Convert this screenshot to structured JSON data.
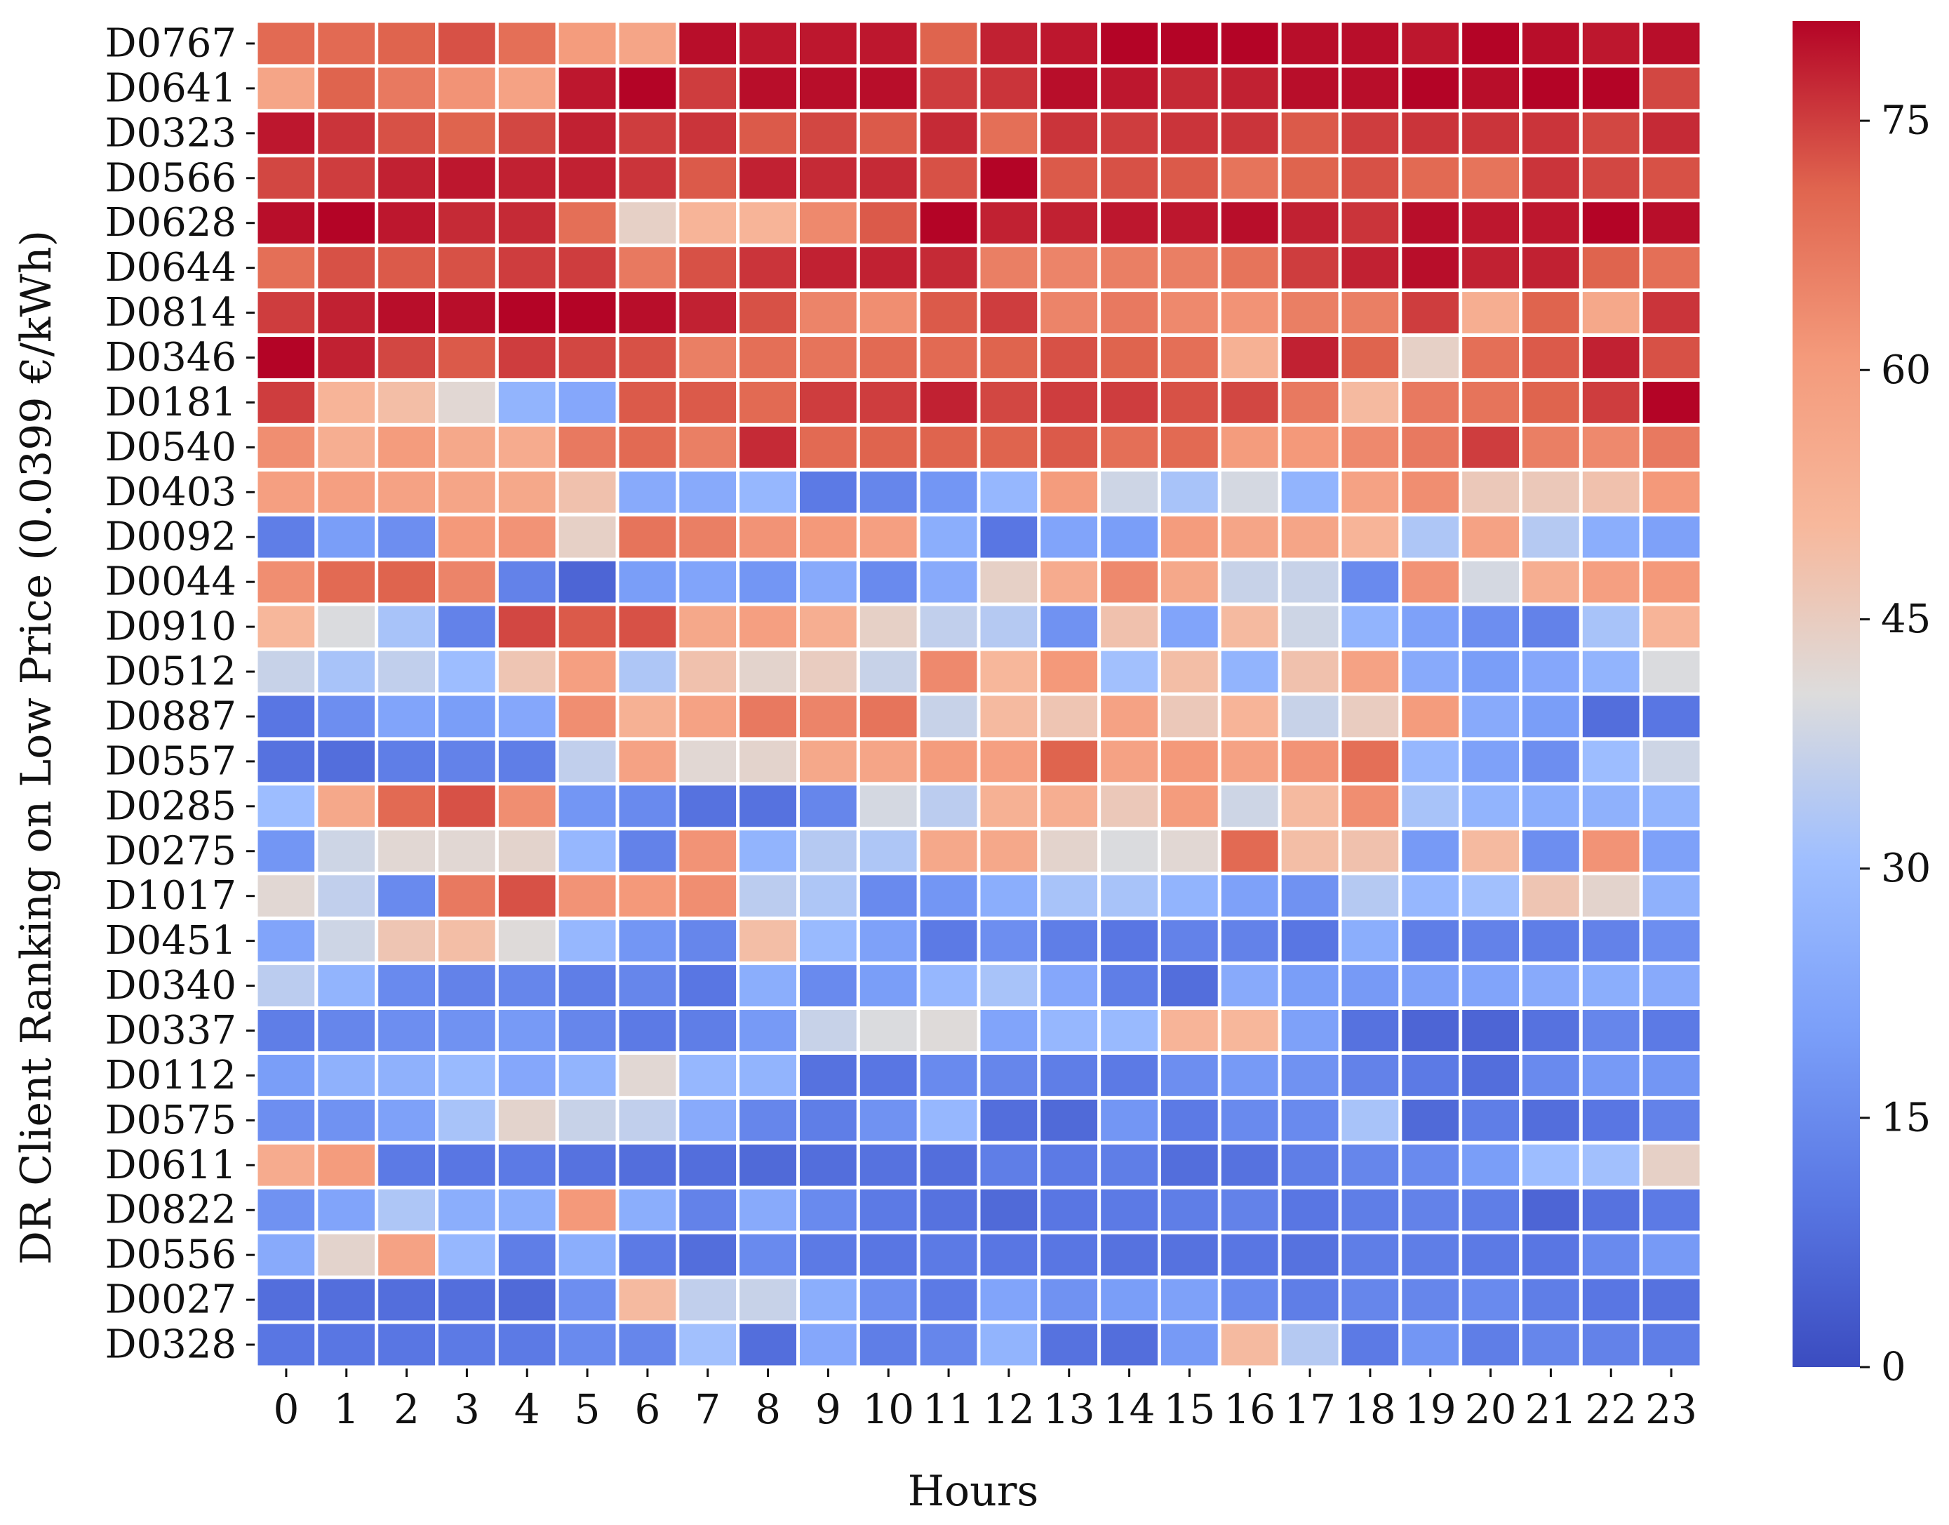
{
  "chart_data": {
    "type": "heatmap",
    "xlabel": "Hours",
    "ylabel": "DR Client Ranking on Low Price (0.0399 €/kWh)",
    "x_categories": [
      "0",
      "1",
      "2",
      "3",
      "4",
      "5",
      "6",
      "7",
      "8",
      "9",
      "10",
      "11",
      "12",
      "13",
      "14",
      "15",
      "16",
      "17",
      "18",
      "19",
      "20",
      "21",
      "22",
      "23"
    ],
    "y_categories": [
      "D0767",
      "D0641",
      "D0323",
      "D0566",
      "D0628",
      "D0644",
      "D0814",
      "D0346",
      "D0181",
      "D0540",
      "D0403",
      "D0092",
      "D0044",
      "D0910",
      "D0512",
      "D0887",
      "D0557",
      "D0285",
      "D0275",
      "D1017",
      "D0451",
      "D0340",
      "D0337",
      "D0112",
      "D0575",
      "D0611",
      "D0822",
      "D0556",
      "D0027",
      "D0328"
    ],
    "colorbar": {
      "min": 0,
      "max": 81,
      "ticks": [
        0,
        15,
        30,
        45,
        60,
        75
      ],
      "colormap": "coolwarm"
    },
    "values": [
      [
        70,
        70,
        71,
        73,
        69,
        60,
        57,
        80,
        79,
        79,
        79,
        71,
        78,
        79,
        81,
        81,
        81,
        80,
        80,
        79,
        81,
        80,
        79,
        80
      ],
      [
        57,
        71,
        67,
        62,
        58,
        79,
        81,
        75,
        80,
        80,
        80,
        75,
        76,
        80,
        79,
        77,
        78,
        80,
        80,
        81,
        80,
        81,
        81,
        74
      ],
      [
        79,
        76,
        73,
        71,
        74,
        78,
        75,
        76,
        72,
        74,
        72,
        77,
        69,
        76,
        75,
        76,
        76,
        72,
        75,
        76,
        76,
        76,
        74,
        77
      ],
      [
        74,
        75,
        78,
        79,
        78,
        78,
        76,
        72,
        78,
        77,
        77,
        73,
        81,
        72,
        73,
        72,
        68,
        71,
        73,
        70,
        68,
        76,
        74,
        73
      ],
      [
        80,
        81,
        79,
        77,
        77,
        69,
        44,
        52,
        52,
        64,
        72,
        81,
        78,
        78,
        79,
        79,
        80,
        78,
        76,
        80,
        79,
        79,
        81,
        80
      ],
      [
        69,
        73,
        72,
        73,
        75,
        75,
        67,
        73,
        76,
        78,
        78,
        77,
        66,
        65,
        66,
        66,
        68,
        75,
        78,
        80,
        78,
        78,
        71,
        69
      ],
      [
        75,
        78,
        80,
        80,
        81,
        81,
        80,
        78,
        73,
        65,
        63,
        72,
        75,
        65,
        67,
        64,
        62,
        66,
        66,
        75,
        54,
        71,
        56,
        76
      ],
      [
        81,
        78,
        74,
        72,
        75,
        74,
        73,
        66,
        69,
        68,
        70,
        70,
        71,
        73,
        71,
        69,
        53,
        78,
        71,
        44,
        69,
        72,
        78,
        73
      ],
      [
        75,
        52,
        49,
        42,
        27,
        23,
        72,
        72,
        70,
        75,
        75,
        78,
        74,
        75,
        75,
        73,
        74,
        67,
        50,
        67,
        68,
        71,
        75,
        81
      ],
      [
        63,
        54,
        60,
        56,
        55,
        67,
        70,
        66,
        77,
        70,
        71,
        71,
        71,
        72,
        69,
        70,
        60,
        61,
        64,
        67,
        75,
        66,
        64,
        67
      ],
      [
        59,
        59,
        58,
        57,
        56,
        48,
        24,
        24,
        28,
        11,
        14,
        18,
        28,
        60,
        38,
        32,
        39,
        27,
        58,
        63,
        46,
        46,
        48,
        61
      ],
      [
        12,
        20,
        16,
        61,
        62,
        44,
        68,
        66,
        62,
        61,
        59,
        25,
        10,
        22,
        20,
        60,
        57,
        57,
        52,
        33,
        58,
        34,
        25,
        21
      ],
      [
        63,
        70,
        71,
        65,
        13,
        6,
        20,
        22,
        18,
        24,
        15,
        24,
        44,
        55,
        64,
        56,
        37,
        37,
        15,
        62,
        39,
        54,
        59,
        61
      ],
      [
        51,
        40,
        32,
        13,
        74,
        72,
        73,
        56,
        59,
        54,
        44,
        36,
        34,
        17,
        48,
        22,
        50,
        38,
        27,
        21,
        16,
        13,
        32,
        52
      ],
      [
        37,
        32,
        36,
        30,
        47,
        59,
        33,
        48,
        43,
        45,
        37,
        64,
        51,
        61,
        31,
        49,
        27,
        48,
        58,
        24,
        20,
        23,
        27,
        40
      ],
      [
        10,
        16,
        22,
        20,
        23,
        63,
        53,
        58,
        67,
        65,
        68,
        37,
        50,
        47,
        58,
        46,
        52,
        37,
        45,
        60,
        24,
        20,
        8,
        10
      ],
      [
        9,
        8,
        12,
        13,
        12,
        36,
        58,
        42,
        43,
        56,
        57,
        60,
        59,
        71,
        58,
        61,
        58,
        62,
        69,
        28,
        21,
        16,
        30,
        38
      ],
      [
        30,
        56,
        70,
        73,
        63,
        18,
        15,
        9,
        9,
        14,
        39,
        35,
        53,
        54,
        46,
        60,
        38,
        50,
        63,
        32,
        27,
        25,
        26,
        27
      ],
      [
        18,
        38,
        42,
        42,
        43,
        28,
        13,
        62,
        27,
        34,
        33,
        56,
        56,
        43,
        40,
        42,
        70,
        49,
        48,
        19,
        50,
        16,
        62,
        21
      ],
      [
        42,
        36,
        15,
        67,
        73,
        62,
        61,
        63,
        35,
        33,
        15,
        18,
        25,
        32,
        32,
        27,
        21,
        17,
        34,
        28,
        31,
        47,
        43,
        26
      ],
      [
        22,
        38,
        47,
        49,
        41,
        28,
        18,
        14,
        49,
        29,
        21,
        11,
        16,
        12,
        10,
        13,
        13,
        10,
        25,
        12,
        13,
        12,
        13,
        16
      ],
      [
        35,
        27,
        15,
        13,
        14,
        12,
        14,
        10,
        25,
        15,
        20,
        28,
        32,
        23,
        12,
        8,
        24,
        20,
        19,
        21,
        22,
        24,
        25,
        24
      ],
      [
        12,
        14,
        16,
        17,
        19,
        14,
        11,
        12,
        19,
        37,
        40,
        41,
        22,
        28,
        29,
        52,
        51,
        21,
        9,
        6,
        6,
        9,
        14,
        11
      ],
      [
        20,
        26,
        26,
        29,
        23,
        27,
        42,
        28,
        27,
        9,
        10,
        15,
        14,
        12,
        11,
        16,
        19,
        17,
        13,
        11,
        8,
        15,
        19,
        18
      ],
      [
        16,
        17,
        21,
        32,
        43,
        37,
        36,
        24,
        14,
        12,
        17,
        28,
        8,
        7,
        18,
        11,
        15,
        15,
        32,
        7,
        12,
        8,
        10,
        13
      ],
      [
        55,
        60,
        11,
        10,
        11,
        9,
        8,
        8,
        7,
        8,
        9,
        8,
        12,
        11,
        12,
        8,
        9,
        12,
        14,
        15,
        20,
        30,
        31,
        44
      ],
      [
        17,
        22,
        33,
        25,
        25,
        61,
        25,
        13,
        24,
        15,
        11,
        9,
        7,
        10,
        11,
        12,
        13,
        10,
        12,
        13,
        12,
        6,
        9,
        11
      ],
      [
        24,
        43,
        58,
        28,
        12,
        25,
        11,
        8,
        15,
        11,
        10,
        11,
        10,
        10,
        9,
        9,
        10,
        9,
        12,
        12,
        11,
        10,
        15,
        19
      ],
      [
        8,
        8,
        8,
        8,
        7,
        16,
        50,
        36,
        37,
        25,
        16,
        11,
        22,
        17,
        20,
        21,
        15,
        12,
        14,
        14,
        15,
        12,
        10,
        9
      ],
      [
        10,
        10,
        10,
        11,
        11,
        15,
        14,
        31,
        8,
        23,
        12,
        14,
        27,
        9,
        8,
        19,
        50,
        34,
        11,
        18,
        12,
        14,
        13,
        12
      ]
    ]
  }
}
